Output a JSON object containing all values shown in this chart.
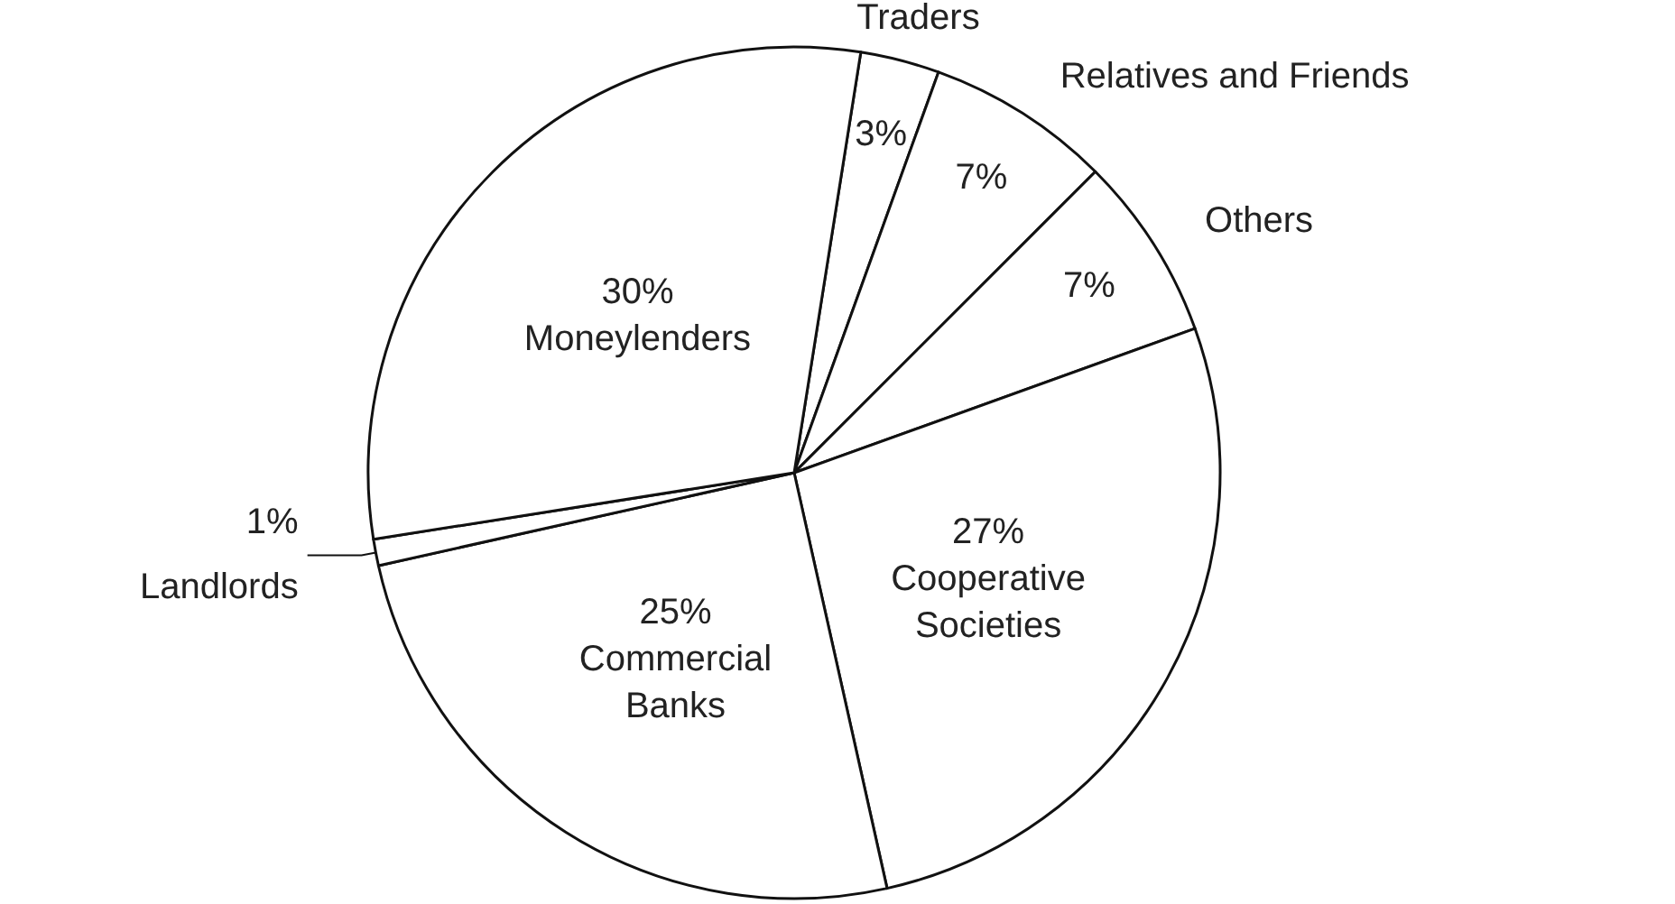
{
  "chart_data": {
    "type": "pie",
    "categories": [
      "Traders",
      "Relatives and Friends",
      "Others",
      "Cooperative Societies",
      "Commercial Banks",
      "Landlords",
      "Moneylenders"
    ],
    "values": [
      3,
      7,
      7,
      27,
      25,
      1,
      30
    ],
    "value_labels": [
      "3%",
      "7%",
      "7%",
      "27%",
      "25%",
      "1%",
      "30%"
    ],
    "colors": [
      "#ffffff",
      "#ffffff",
      "#ffffff",
      "#ffffff",
      "#ffffff",
      "#ffffff",
      "#ffffff"
    ],
    "legend": false
  }
}
